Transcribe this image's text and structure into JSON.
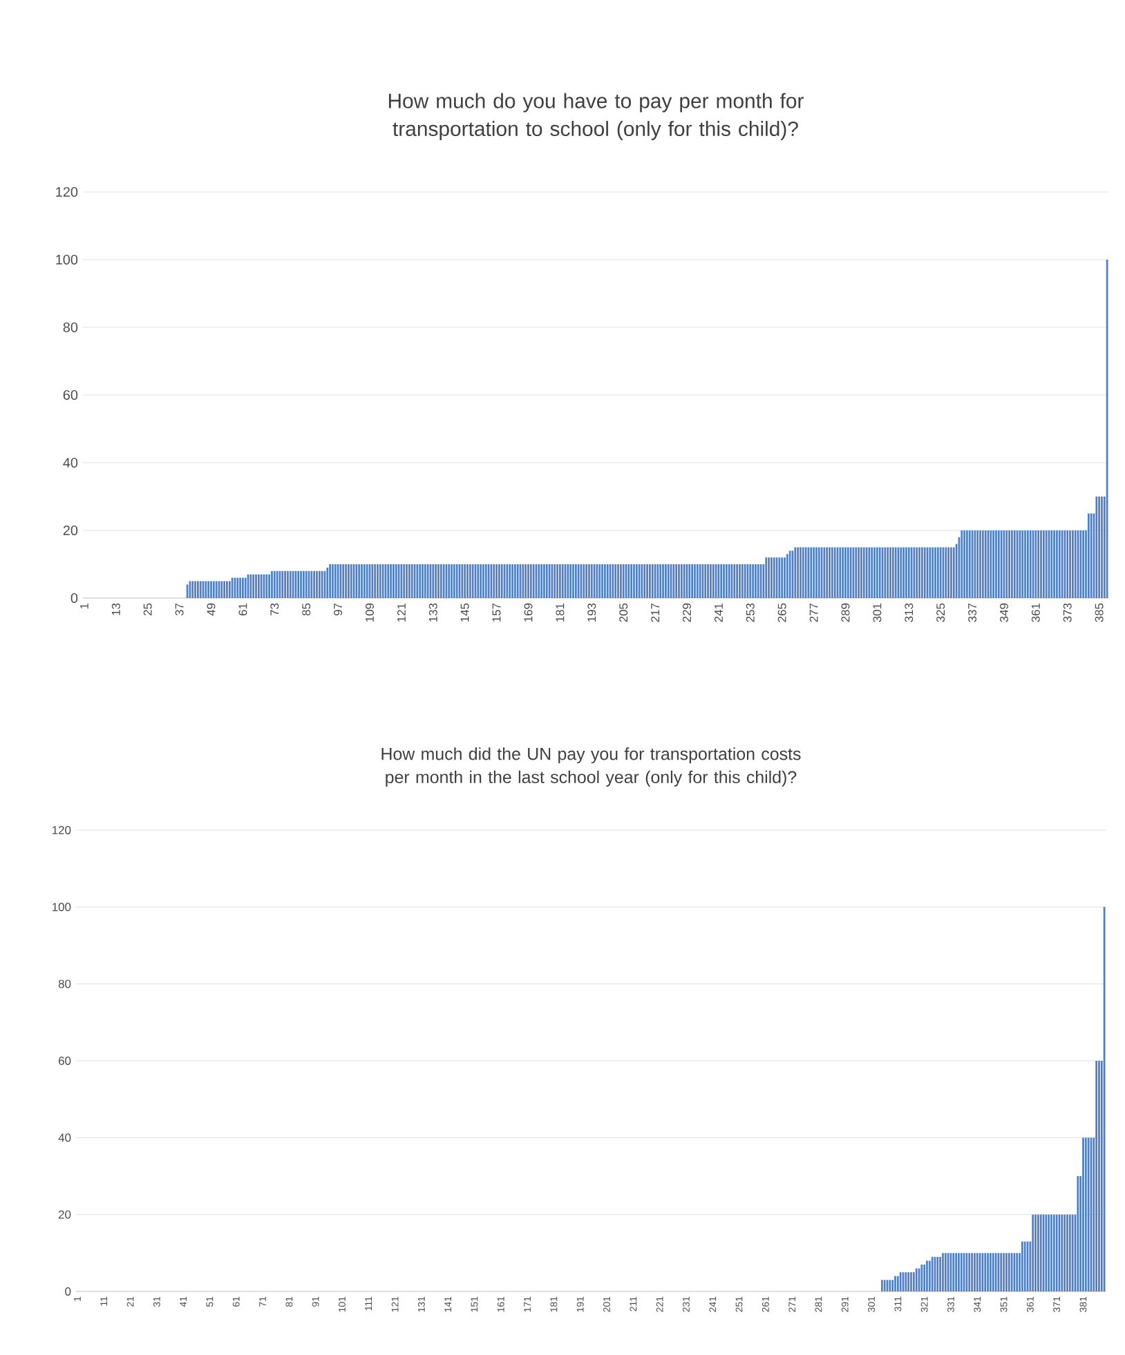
{
  "chart_data": [
    {
      "type": "bar",
      "title": "How much do you have to pay per month for transportation to school (only for this child)?",
      "color": "#4f7fc6",
      "ylim": [
        0,
        120
      ],
      "yticks": [
        0,
        20,
        40,
        60,
        80,
        100,
        120
      ],
      "grid": "y",
      "categories": [
        "1",
        null,
        null,
        null,
        null,
        null,
        null,
        null,
        null,
        null,
        null,
        null,
        "13",
        null,
        null,
        null,
        null,
        null,
        null,
        null,
        null,
        null,
        null,
        null,
        "25",
        null,
        null,
        null,
        null,
        null,
        null,
        null,
        null,
        null,
        null,
        null,
        "37",
        null,
        null,
        null,
        null,
        null,
        null,
        null,
        null,
        null,
        null,
        null,
        "49",
        null,
        null,
        null,
        null,
        null,
        null,
        null,
        null,
        null,
        null,
        null,
        "61",
        null,
        null,
        null,
        null,
        null,
        null,
        null,
        null,
        null,
        null,
        null,
        "73",
        null,
        null,
        null,
        null,
        null,
        null,
        null,
        null,
        null,
        null,
        null,
        "85",
        null,
        null,
        null,
        null,
        null,
        null,
        null,
        null,
        null,
        null,
        null,
        "97",
        null,
        null,
        null,
        null,
        null,
        null,
        null,
        null,
        null,
        null,
        null,
        "109",
        null,
        null,
        null,
        null,
        null,
        null,
        null,
        null,
        null,
        null,
        null,
        "121",
        null,
        null,
        null,
        null,
        null,
        null,
        null,
        null,
        null,
        null,
        null,
        "133",
        null,
        null,
        null,
        null,
        null,
        null,
        null,
        null,
        null,
        null,
        null,
        "145",
        null,
        null,
        null,
        null,
        null,
        null,
        null,
        null,
        null,
        null,
        null,
        "157",
        null,
        null,
        null,
        null,
        null,
        null,
        null,
        null,
        null,
        null,
        null,
        "169",
        null,
        null,
        null,
        null,
        null,
        null,
        null,
        null,
        null,
        null,
        null,
        "181",
        null,
        null,
        null,
        null,
        null,
        null,
        null,
        null,
        null,
        null,
        null,
        "193",
        null,
        null,
        null,
        null,
        null,
        null,
        null,
        null,
        null,
        null,
        null,
        "205",
        null,
        null,
        null,
        null,
        null,
        null,
        null,
        null,
        null,
        null,
        null,
        "217",
        null,
        null,
        null,
        null,
        null,
        null,
        null,
        null,
        null,
        null,
        null,
        "229",
        null,
        null,
        null,
        null,
        null,
        null,
        null,
        null,
        null,
        null,
        null,
        "241",
        null,
        null,
        null,
        null,
        null,
        null,
        null,
        null,
        null,
        null,
        null,
        "253",
        null,
        null,
        null,
        null,
        null,
        null,
        null,
        null,
        null,
        null,
        null,
        "265",
        null,
        null,
        null,
        null,
        null,
        null,
        null,
        null,
        null,
        null,
        null,
        "277",
        null,
        null,
        null,
        null,
        null,
        null,
        null,
        null,
        null,
        null,
        null,
        "289",
        null,
        null,
        null,
        null,
        null,
        null,
        null,
        null,
        null,
        null,
        null,
        "301",
        null,
        null,
        null,
        null,
        null,
        null,
        null,
        null,
        null,
        null,
        null,
        "313",
        null,
        null,
        null,
        null,
        null,
        null,
        null,
        null,
        null,
        null,
        null,
        "325",
        null,
        null,
        null,
        null,
        null,
        null,
        null,
        null,
        null,
        null,
        null,
        "337",
        null,
        null,
        null,
        null,
        null,
        null,
        null,
        null,
        null,
        null,
        null,
        "349",
        null,
        null,
        null,
        null,
        null,
        null,
        null,
        null,
        null,
        null,
        null,
        "361",
        null,
        null,
        null,
        null,
        null,
        null,
        null,
        null,
        null,
        null,
        null,
        "373",
        null,
        null,
        null,
        null,
        null,
        null,
        null,
        null,
        null,
        null,
        null,
        "385",
        null,
        null,
        null
      ],
      "values": [
        0,
        0,
        0,
        0,
        0,
        0,
        0,
        0,
        0,
        0,
        0,
        0,
        0,
        0,
        0,
        0,
        0,
        0,
        0,
        0,
        0,
        0,
        0,
        0,
        0,
        0,
        0,
        0,
        0,
        0,
        0,
        0,
        0,
        0,
        0,
        0,
        0,
        0,
        0,
        4,
        5,
        5,
        5,
        5,
        5,
        5,
        5,
        5,
        5,
        5,
        5,
        5,
        5,
        5,
        5,
        5,
        6,
        6,
        6,
        6,
        6,
        6,
        7,
        7,
        7,
        7,
        7,
        7,
        7,
        7,
        7,
        8,
        8,
        8,
        8,
        8,
        8,
        8,
        8,
        8,
        8,
        8,
        8,
        8,
        8,
        8,
        8,
        8,
        8,
        8,
        8,
        8,
        9,
        10,
        10,
        10,
        10,
        10,
        10,
        10,
        10,
        10,
        10,
        10,
        10,
        10,
        10,
        10,
        10,
        10,
        10,
        10,
        10,
        10,
        10,
        10,
        10,
        10,
        10,
        10,
        10,
        10,
        10,
        10,
        10,
        10,
        10,
        10,
        10,
        10,
        10,
        10,
        10,
        10,
        10,
        10,
        10,
        10,
        10,
        10,
        10,
        10,
        10,
        10,
        10,
        10,
        10,
        10,
        10,
        10,
        10,
        10,
        10,
        10,
        10,
        10,
        10,
        10,
        10,
        10,
        10,
        10,
        10,
        10,
        10,
        10,
        10,
        10,
        10,
        10,
        10,
        10,
        10,
        10,
        10,
        10,
        10,
        10,
        10,
        10,
        10,
        10,
        10,
        10,
        10,
        10,
        10,
        10,
        10,
        10,
        10,
        10,
        10,
        10,
        10,
        10,
        10,
        10,
        10,
        10,
        10,
        10,
        10,
        10,
        10,
        10,
        10,
        10,
        10,
        10,
        10,
        10,
        10,
        10,
        10,
        10,
        10,
        10,
        10,
        10,
        10,
        10,
        10,
        10,
        10,
        10,
        10,
        10,
        10,
        10,
        10,
        10,
        10,
        10,
        10,
        10,
        10,
        10,
        10,
        10,
        10,
        10,
        10,
        10,
        10,
        10,
        10,
        10,
        10,
        10,
        10,
        10,
        10,
        10,
        10,
        10,
        10,
        10,
        12,
        12,
        12,
        12,
        12,
        12,
        12,
        12,
        13,
        14,
        14,
        15,
        15,
        15,
        15,
        15,
        15,
        15,
        15,
        15,
        15,
        15,
        15,
        15,
        15,
        15,
        15,
        15,
        15,
        15,
        15,
        15,
        15,
        15,
        15,
        15,
        15,
        15,
        15,
        15,
        15,
        15,
        15,
        15,
        15,
        15,
        15,
        15,
        15,
        15,
        15,
        15,
        15,
        15,
        15,
        15,
        15,
        15,
        15,
        15,
        15,
        15,
        15,
        15,
        15,
        15,
        15,
        15,
        15,
        15,
        15,
        15,
        16,
        18,
        20,
        20,
        20,
        20,
        20,
        20,
        20,
        20,
        20,
        20,
        20,
        20,
        20,
        20,
        20,
        20,
        20,
        20,
        20,
        20,
        20,
        20,
        20,
        20,
        20,
        20,
        20,
        20,
        20,
        20,
        20,
        20,
        20,
        20,
        20,
        20,
        20,
        20,
        20,
        20,
        20,
        20,
        20,
        20,
        20,
        20,
        20,
        20,
        25,
        25,
        25,
        30,
        30,
        30,
        30,
        100
      ]
    },
    {
      "type": "bar",
      "title": "How much did the UN pay you for transportation costs per month in the last school year (only for this child)?",
      "color": "#4f7fc6",
      "ylim": [
        0,
        120
      ],
      "yticks": [
        0,
        20,
        40,
        60,
        80,
        100,
        120
      ],
      "grid": "y",
      "categories": [
        "1",
        null,
        null,
        null,
        null,
        null,
        null,
        null,
        null,
        null,
        "11",
        null,
        null,
        null,
        null,
        null,
        null,
        null,
        null,
        null,
        "21",
        null,
        null,
        null,
        null,
        null,
        null,
        null,
        null,
        null,
        "31",
        null,
        null,
        null,
        null,
        null,
        null,
        null,
        null,
        null,
        "41",
        null,
        null,
        null,
        null,
        null,
        null,
        null,
        null,
        null,
        "51",
        null,
        null,
        null,
        null,
        null,
        null,
        null,
        null,
        null,
        "61",
        null,
        null,
        null,
        null,
        null,
        null,
        null,
        null,
        null,
        "71",
        null,
        null,
        null,
        null,
        null,
        null,
        null,
        null,
        null,
        "81",
        null,
        null,
        null,
        null,
        null,
        null,
        null,
        null,
        null,
        "91",
        null,
        null,
        null,
        null,
        null,
        null,
        null,
        null,
        null,
        "101",
        null,
        null,
        null,
        null,
        null,
        null,
        null,
        null,
        null,
        "111",
        null,
        null,
        null,
        null,
        null,
        null,
        null,
        null,
        null,
        "121",
        null,
        null,
        null,
        null,
        null,
        null,
        null,
        null,
        null,
        "131",
        null,
        null,
        null,
        null,
        null,
        null,
        null,
        null,
        null,
        "141",
        null,
        null,
        null,
        null,
        null,
        null,
        null,
        null,
        null,
        "151",
        null,
        null,
        null,
        null,
        null,
        null,
        null,
        null,
        null,
        "161",
        null,
        null,
        null,
        null,
        null,
        null,
        null,
        null,
        null,
        "171",
        null,
        null,
        null,
        null,
        null,
        null,
        null,
        null,
        null,
        "181",
        null,
        null,
        null,
        null,
        null,
        null,
        null,
        null,
        null,
        "191",
        null,
        null,
        null,
        null,
        null,
        null,
        null,
        null,
        null,
        "201",
        null,
        null,
        null,
        null,
        null,
        null,
        null,
        null,
        null,
        "211",
        null,
        null,
        null,
        null,
        null,
        null,
        null,
        null,
        null,
        "221",
        null,
        null,
        null,
        null,
        null,
        null,
        null,
        null,
        null,
        "231",
        null,
        null,
        null,
        null,
        null,
        null,
        null,
        null,
        null,
        "241",
        null,
        null,
        null,
        null,
        null,
        null,
        null,
        null,
        null,
        "251",
        null,
        null,
        null,
        null,
        null,
        null,
        null,
        null,
        null,
        "261",
        null,
        null,
        null,
        null,
        null,
        null,
        null,
        null,
        null,
        "271",
        null,
        null,
        null,
        null,
        null,
        null,
        null,
        null,
        null,
        "281",
        null,
        null,
        null,
        null,
        null,
        null,
        null,
        null,
        null,
        "291",
        null,
        null,
        null,
        null,
        null,
        null,
        null,
        null,
        null,
        "301",
        null,
        null,
        null,
        null,
        null,
        null,
        null,
        null,
        null,
        "311",
        null,
        null,
        null,
        null,
        null,
        null,
        null,
        null,
        null,
        "321",
        null,
        null,
        null,
        null,
        null,
        null,
        null,
        null,
        null,
        "331",
        null,
        null,
        null,
        null,
        null,
        null,
        null,
        null,
        null,
        "341",
        null,
        null,
        null,
        null,
        null,
        null,
        null,
        null,
        null,
        "351",
        null,
        null,
        null,
        null,
        null,
        null,
        null,
        null,
        null,
        "361",
        null,
        null,
        null,
        null,
        null,
        null,
        null,
        null,
        null,
        "371",
        null,
        null,
        null,
        null,
        null,
        null,
        null,
        null,
        null,
        "381",
        null,
        null,
        null,
        null,
        null,
        null,
        null,
        null
      ],
      "values": [
        0,
        0,
        0,
        0,
        0,
        0,
        0,
        0,
        0,
        0,
        0,
        0,
        0,
        0,
        0,
        0,
        0,
        0,
        0,
        0,
        0,
        0,
        0,
        0,
        0,
        0,
        0,
        0,
        0,
        0,
        0,
        0,
        0,
        0,
        0,
        0,
        0,
        0,
        0,
        0,
        0,
        0,
        0,
        0,
        0,
        0,
        0,
        0,
        0,
        0,
        0,
        0,
        0,
        0,
        0,
        0,
        0,
        0,
        0,
        0,
        0,
        0,
        0,
        0,
        0,
        0,
        0,
        0,
        0,
        0,
        0,
        0,
        0,
        0,
        0,
        0,
        0,
        0,
        0,
        0,
        0,
        0,
        0,
        0,
        0,
        0,
        0,
        0,
        0,
        0,
        0,
        0,
        0,
        0,
        0,
        0,
        0,
        0,
        0,
        0,
        0,
        0,
        0,
        0,
        0,
        0,
        0,
        0,
        0,
        0,
        0,
        0,
        0,
        0,
        0,
        0,
        0,
        0,
        0,
        0,
        0,
        0,
        0,
        0,
        0,
        0,
        0,
        0,
        0,
        0,
        0,
        0,
        0,
        0,
        0,
        0,
        0,
        0,
        0,
        0,
        0,
        0,
        0,
        0,
        0,
        0,
        0,
        0,
        0,
        0,
        0,
        0,
        0,
        0,
        0,
        0,
        0,
        0,
        0,
        0,
        0,
        0,
        0,
        0,
        0,
        0,
        0,
        0,
        0,
        0,
        0,
        0,
        0,
        0,
        0,
        0,
        0,
        0,
        0,
        0,
        0,
        0,
        0,
        0,
        0,
        0,
        0,
        0,
        0,
        0,
        0,
        0,
        0,
        0,
        0,
        0,
        0,
        0,
        0,
        0,
        0,
        0,
        0,
        0,
        0,
        0,
        0,
        0,
        0,
        0,
        0,
        0,
        0,
        0,
        0,
        0,
        0,
        0,
        0,
        0,
        0,
        0,
        0,
        0,
        0,
        0,
        0,
        0,
        0,
        0,
        0,
        0,
        0,
        0,
        0,
        0,
        0,
        0,
        0,
        0,
        0,
        0,
        0,
        0,
        0,
        0,
        0,
        0,
        0,
        0,
        0,
        0,
        0,
        0,
        0,
        0,
        0,
        0,
        0,
        0,
        0,
        0,
        0,
        0,
        0,
        0,
        0,
        0,
        0,
        0,
        0,
        0,
        0,
        0,
        0,
        0,
        0,
        0,
        0,
        0,
        0,
        0,
        0,
        0,
        0,
        0,
        0,
        0,
        0,
        0,
        0,
        0,
        0,
        0,
        0,
        0,
        0,
        0,
        0,
        0,
        0,
        0,
        0,
        0,
        3,
        3,
        3,
        3,
        3,
        4,
        4,
        5,
        5,
        5,
        5,
        5,
        5,
        6,
        6,
        7,
        7,
        8,
        8,
        9,
        9,
        9,
        9,
        10,
        10,
        10,
        10,
        10,
        10,
        10,
        10,
        10,
        10,
        10,
        10,
        10,
        10,
        10,
        10,
        10,
        10,
        10,
        10,
        10,
        10,
        10,
        10,
        10,
        10,
        10,
        10,
        10,
        10,
        13,
        13,
        13,
        13,
        20,
        20,
        20,
        20,
        20,
        20,
        20,
        20,
        20,
        20,
        20,
        20,
        20,
        20,
        20,
        20,
        20,
        30,
        30,
        40,
        40,
        40,
        40,
        40,
        60,
        60,
        60,
        100
      ]
    }
  ]
}
